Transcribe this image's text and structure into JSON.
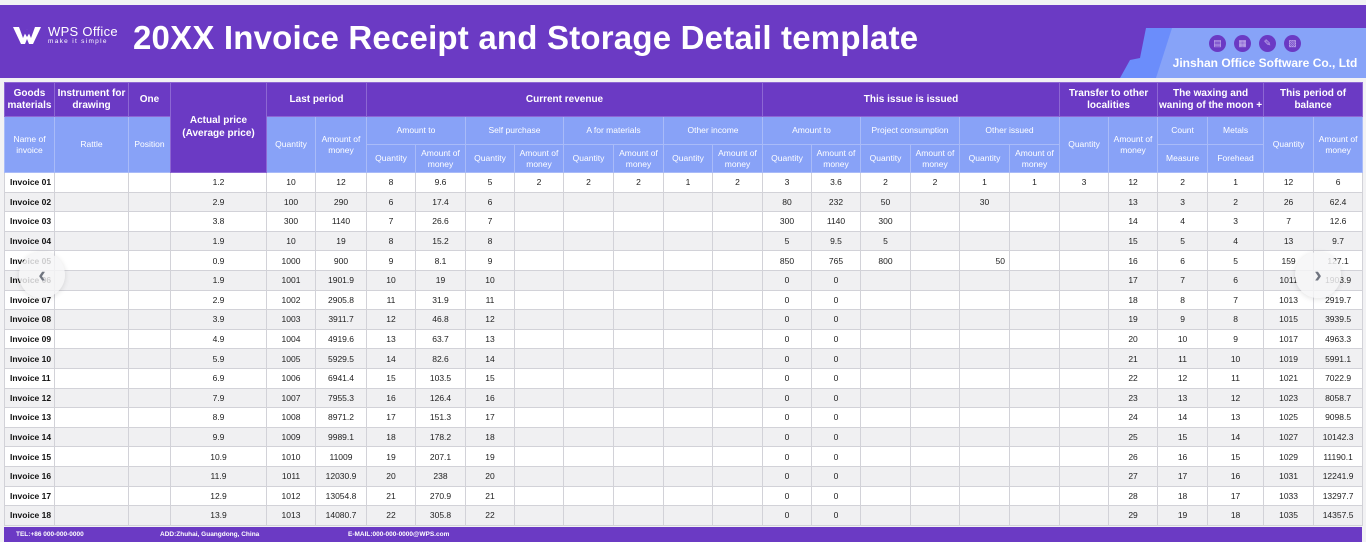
{
  "header": {
    "logo_name": "WPS Office",
    "logo_tagline": "make it simple",
    "title": "20XX Invoice Receipt and Storage Detail template",
    "company": "Jinshan Office Software Co., Ltd",
    "icons": [
      "presentation-icon",
      "document-icon",
      "pen-icon",
      "book-icon"
    ],
    "colors": {
      "primary": "#6b3ac4",
      "secondary": "#88a2f7"
    }
  },
  "table": {
    "top_headers": {
      "goods_materials": "Goods materials",
      "instrument": "Instrument for drawing",
      "one": "One",
      "actual_price": "Actual price (Average price)",
      "last_period": "Last period",
      "current_revenue": "Current revenue",
      "this_issue": "This issue is issued",
      "transfer": "Transfer to other localities",
      "waxing": "The waxing and waning of the moon +",
      "balance": "This period of balance"
    },
    "sub_headers": {
      "name_of_invoice": "Name of invoice",
      "rattle": "Rattle",
      "position": "Position",
      "amount_to": "Amount to",
      "self_purchase": "Self purchase",
      "a_for_materials": "A for materials",
      "other_income": "Other income",
      "issue_amount_to": "Amount to",
      "project_consumption": "Project consumption",
      "other_issued": "Other issued",
      "count": "Count",
      "metals": "Metals",
      "measure": "Measure",
      "forehead": "Forehead",
      "quantity": "Quantity",
      "amount_of_money": "Amount of money"
    },
    "rows": [
      {
        "name": "Invoice 01",
        "price": "1.2",
        "lp_q": "10",
        "lp_m": "12",
        "cr_q": "8",
        "cr_m": "9.6",
        "sp_q": "5",
        "sp_m": "2",
        "am_q": "2",
        "am_m": "2",
        "oi_q": "1",
        "oi_m": "2",
        "is_q": "3",
        "is_m": "3.6",
        "pc_q": "2",
        "pc_m": "2",
        "ois_q": "1",
        "ois_m": "1",
        "tr_q": "3",
        "tr_m": "12",
        "count": "2",
        "metals": "1",
        "bal_q": "12",
        "bal_m": "6"
      },
      {
        "name": "Invoice 02",
        "price": "2.9",
        "lp_q": "100",
        "lp_m": "290",
        "cr_q": "6",
        "cr_m": "17.4",
        "sp_q": "6",
        "sp_m": "",
        "am_q": "",
        "am_m": "",
        "oi_q": "",
        "oi_m": "",
        "is_q": "80",
        "is_m": "232",
        "pc_q": "50",
        "pc_m": "",
        "ois_q": "30",
        "ois_m": "",
        "tr_q": "",
        "tr_m": "13",
        "count": "3",
        "metals": "2",
        "bal_q": "26",
        "bal_m": "62.4"
      },
      {
        "name": "Invoice 03",
        "price": "3.8",
        "lp_q": "300",
        "lp_m": "1140",
        "cr_q": "7",
        "cr_m": "26.6",
        "sp_q": "7",
        "sp_m": "",
        "am_q": "",
        "am_m": "",
        "oi_q": "",
        "oi_m": "",
        "is_q": "300",
        "is_m": "1140",
        "pc_q": "300",
        "pc_m": "",
        "ois_q": "",
        "ois_m": "",
        "tr_q": "",
        "tr_m": "14",
        "count": "4",
        "metals": "3",
        "bal_q": "7",
        "bal_m": "12.6"
      },
      {
        "name": "Invoice 04",
        "price": "1.9",
        "lp_q": "10",
        "lp_m": "19",
        "cr_q": "8",
        "cr_m": "15.2",
        "sp_q": "8",
        "sp_m": "",
        "am_q": "",
        "am_m": "",
        "oi_q": "",
        "oi_m": "",
        "is_q": "5",
        "is_m": "9.5",
        "pc_q": "5",
        "pc_m": "",
        "ois_q": "",
        "ois_m": "",
        "tr_q": "",
        "tr_m": "15",
        "count": "5",
        "metals": "4",
        "bal_q": "13",
        "bal_m": "9.7"
      },
      {
        "name": "Invoice 05",
        "price": "0.9",
        "lp_q": "1000",
        "lp_m": "900",
        "cr_q": "9",
        "cr_m": "8.1",
        "sp_q": "9",
        "sp_m": "",
        "am_q": "",
        "am_m": "",
        "oi_q": "",
        "oi_m": "",
        "is_q": "850",
        "is_m": "765",
        "pc_q": "800",
        "pc_m": "",
        "ois_q": "50",
        "ois_m": "",
        "tr_q": "",
        "tr_m": "16",
        "count": "6",
        "metals": "5",
        "bal_q": "159",
        "bal_m": "127.1"
      },
      {
        "name": "Invoice 06",
        "price": "1.9",
        "lp_q": "1001",
        "lp_m": "1901.9",
        "cr_q": "10",
        "cr_m": "19",
        "sp_q": "10",
        "sp_m": "",
        "am_q": "",
        "am_m": "",
        "oi_q": "",
        "oi_m": "",
        "is_q": "0",
        "is_m": "0",
        "pc_q": "",
        "pc_m": "",
        "ois_q": "",
        "ois_m": "",
        "tr_q": "",
        "tr_m": "17",
        "count": "7",
        "metals": "6",
        "bal_q": "1011",
        "bal_m": "1903.9"
      },
      {
        "name": "Invoice 07",
        "price": "2.9",
        "lp_q": "1002",
        "lp_m": "2905.8",
        "cr_q": "11",
        "cr_m": "31.9",
        "sp_q": "11",
        "sp_m": "",
        "am_q": "",
        "am_m": "",
        "oi_q": "",
        "oi_m": "",
        "is_q": "0",
        "is_m": "0",
        "pc_q": "",
        "pc_m": "",
        "ois_q": "",
        "ois_m": "",
        "tr_q": "",
        "tr_m": "18",
        "count": "8",
        "metals": "7",
        "bal_q": "1013",
        "bal_m": "2919.7"
      },
      {
        "name": "Invoice 08",
        "price": "3.9",
        "lp_q": "1003",
        "lp_m": "3911.7",
        "cr_q": "12",
        "cr_m": "46.8",
        "sp_q": "12",
        "sp_m": "",
        "am_q": "",
        "am_m": "",
        "oi_q": "",
        "oi_m": "",
        "is_q": "0",
        "is_m": "0",
        "pc_q": "",
        "pc_m": "",
        "ois_q": "",
        "ois_m": "",
        "tr_q": "",
        "tr_m": "19",
        "count": "9",
        "metals": "8",
        "bal_q": "1015",
        "bal_m": "3939.5"
      },
      {
        "name": "Invoice 09",
        "price": "4.9",
        "lp_q": "1004",
        "lp_m": "4919.6",
        "cr_q": "13",
        "cr_m": "63.7",
        "sp_q": "13",
        "sp_m": "",
        "am_q": "",
        "am_m": "",
        "oi_q": "",
        "oi_m": "",
        "is_q": "0",
        "is_m": "0",
        "pc_q": "",
        "pc_m": "",
        "ois_q": "",
        "ois_m": "",
        "tr_q": "",
        "tr_m": "20",
        "count": "10",
        "metals": "9",
        "bal_q": "1017",
        "bal_m": "4963.3"
      },
      {
        "name": "Invoice 10",
        "price": "5.9",
        "lp_q": "1005",
        "lp_m": "5929.5",
        "cr_q": "14",
        "cr_m": "82.6",
        "sp_q": "14",
        "sp_m": "",
        "am_q": "",
        "am_m": "",
        "oi_q": "",
        "oi_m": "",
        "is_q": "0",
        "is_m": "0",
        "pc_q": "",
        "pc_m": "",
        "ois_q": "",
        "ois_m": "",
        "tr_q": "",
        "tr_m": "21",
        "count": "11",
        "metals": "10",
        "bal_q": "1019",
        "bal_m": "5991.1"
      },
      {
        "name": "Invoice 11",
        "price": "6.9",
        "lp_q": "1006",
        "lp_m": "6941.4",
        "cr_q": "15",
        "cr_m": "103.5",
        "sp_q": "15",
        "sp_m": "",
        "am_q": "",
        "am_m": "",
        "oi_q": "",
        "oi_m": "",
        "is_q": "0",
        "is_m": "0",
        "pc_q": "",
        "pc_m": "",
        "ois_q": "",
        "ois_m": "",
        "tr_q": "",
        "tr_m": "22",
        "count": "12",
        "metals": "11",
        "bal_q": "1021",
        "bal_m": "7022.9"
      },
      {
        "name": "Invoice 12",
        "price": "7.9",
        "lp_q": "1007",
        "lp_m": "7955.3",
        "cr_q": "16",
        "cr_m": "126.4",
        "sp_q": "16",
        "sp_m": "",
        "am_q": "",
        "am_m": "",
        "oi_q": "",
        "oi_m": "",
        "is_q": "0",
        "is_m": "0",
        "pc_q": "",
        "pc_m": "",
        "ois_q": "",
        "ois_m": "",
        "tr_q": "",
        "tr_m": "23",
        "count": "13",
        "metals": "12",
        "bal_q": "1023",
        "bal_m": "8058.7"
      },
      {
        "name": "Invoice 13",
        "price": "8.9",
        "lp_q": "1008",
        "lp_m": "8971.2",
        "cr_q": "17",
        "cr_m": "151.3",
        "sp_q": "17",
        "sp_m": "",
        "am_q": "",
        "am_m": "",
        "oi_q": "",
        "oi_m": "",
        "is_q": "0",
        "is_m": "0",
        "pc_q": "",
        "pc_m": "",
        "ois_q": "",
        "ois_m": "",
        "tr_q": "",
        "tr_m": "24",
        "count": "14",
        "metals": "13",
        "bal_q": "1025",
        "bal_m": "9098.5"
      },
      {
        "name": "Invoice 14",
        "price": "9.9",
        "lp_q": "1009",
        "lp_m": "9989.1",
        "cr_q": "18",
        "cr_m": "178.2",
        "sp_q": "18",
        "sp_m": "",
        "am_q": "",
        "am_m": "",
        "oi_q": "",
        "oi_m": "",
        "is_q": "0",
        "is_m": "0",
        "pc_q": "",
        "pc_m": "",
        "ois_q": "",
        "ois_m": "",
        "tr_q": "",
        "tr_m": "25",
        "count": "15",
        "metals": "14",
        "bal_q": "1027",
        "bal_m": "10142.3"
      },
      {
        "name": "Invoice 15",
        "price": "10.9",
        "lp_q": "1010",
        "lp_m": "11009",
        "cr_q": "19",
        "cr_m": "207.1",
        "sp_q": "19",
        "sp_m": "",
        "am_q": "",
        "am_m": "",
        "oi_q": "",
        "oi_m": "",
        "is_q": "0",
        "is_m": "0",
        "pc_q": "",
        "pc_m": "",
        "ois_q": "",
        "ois_m": "",
        "tr_q": "",
        "tr_m": "26",
        "count": "16",
        "metals": "15",
        "bal_q": "1029",
        "bal_m": "11190.1"
      },
      {
        "name": "Invoice 16",
        "price": "11.9",
        "lp_q": "1011",
        "lp_m": "12030.9",
        "cr_q": "20",
        "cr_m": "238",
        "sp_q": "20",
        "sp_m": "",
        "am_q": "",
        "am_m": "",
        "oi_q": "",
        "oi_m": "",
        "is_q": "0",
        "is_m": "0",
        "pc_q": "",
        "pc_m": "",
        "ois_q": "",
        "ois_m": "",
        "tr_q": "",
        "tr_m": "27",
        "count": "17",
        "metals": "16",
        "bal_q": "1031",
        "bal_m": "12241.9"
      },
      {
        "name": "Invoice 17",
        "price": "12.9",
        "lp_q": "1012",
        "lp_m": "13054.8",
        "cr_q": "21",
        "cr_m": "270.9",
        "sp_q": "21",
        "sp_m": "",
        "am_q": "",
        "am_m": "",
        "oi_q": "",
        "oi_m": "",
        "is_q": "0",
        "is_m": "0",
        "pc_q": "",
        "pc_m": "",
        "ois_q": "",
        "ois_m": "",
        "tr_q": "",
        "tr_m": "28",
        "count": "18",
        "metals": "17",
        "bal_q": "1033",
        "bal_m": "13297.7"
      },
      {
        "name": "Invoice 18",
        "price": "13.9",
        "lp_q": "1013",
        "lp_m": "14080.7",
        "cr_q": "22",
        "cr_m": "305.8",
        "sp_q": "22",
        "sp_m": "",
        "am_q": "",
        "am_m": "",
        "oi_q": "",
        "oi_m": "",
        "is_q": "0",
        "is_m": "0",
        "pc_q": "",
        "pc_m": "",
        "ois_q": "",
        "ois_m": "",
        "tr_q": "",
        "tr_m": "29",
        "count": "19",
        "metals": "18",
        "bal_q": "1035",
        "bal_m": "14357.5"
      }
    ]
  },
  "footer": {
    "tel": "TEL:+86 000-000-0000",
    "address": "ADD:Zhuhai, Guangdong, China",
    "email": "E-MAIL:000-000-0000@WPS.com"
  },
  "nav": {
    "prev_icon": "‹",
    "next_icon": "›"
  }
}
